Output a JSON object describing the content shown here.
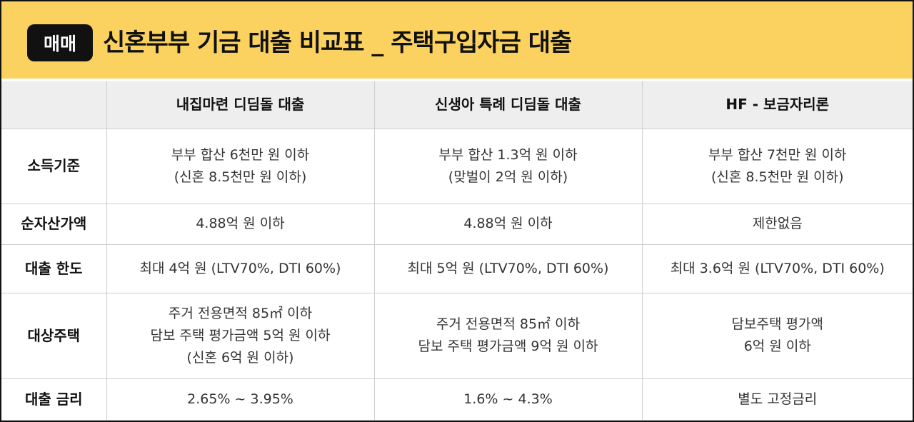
{
  "header": {
    "badge": "매매",
    "title": "신혼부부 기금 대출 비교표 _ 주택구입자금 대출"
  },
  "table": {
    "columns": [
      "내집마련 디딤돌 대출",
      "신생아 특례 디딤돌 대출",
      "HF - 보금자리론"
    ],
    "rows": [
      {
        "label": "소득기준",
        "cells": [
          [
            "부부 합산 6천만 원 이하",
            "(신혼 8.5천만 원 이하)"
          ],
          [
            "부부 합산 1.3억 원 이하",
            "(맞벌이 2억 원 이하)"
          ],
          [
            "부부 합산 7천만 원 이하",
            "(신혼 8.5천만 원 이하)"
          ]
        ]
      },
      {
        "label": "순자산가액",
        "cells": [
          [
            "4.88억 원 이하"
          ],
          [
            "4.88억 원 이하"
          ],
          [
            "제한없음"
          ]
        ]
      },
      {
        "label": "대출 한도",
        "cells": [
          [
            "최대 4억 원 (LTV70%, DTI 60%)"
          ],
          [
            "최대 5억 원 (LTV70%, DTI 60%)"
          ],
          [
            "최대 3.6억 원 (LTV70%, DTI 60%)"
          ]
        ]
      },
      {
        "label": "대상주택",
        "cells": [
          [
            "주거 전용면적 85㎡ 이하",
            "담보 주택 평가금액 5억 원 이하",
            "(신혼 6억 원 이하)"
          ],
          [
            "주거 전용면적 85㎡ 이하",
            "담보 주택 평가금액 9억 원 이하"
          ],
          [
            "담보주택 평가액",
            "6억 원 이하"
          ]
        ]
      },
      {
        "label": "대출 금리",
        "cells": [
          [
            "2.65% ~ 3.95%"
          ],
          [
            "1.6% ~ 4.3%"
          ],
          [
            "별도 고정금리"
          ]
        ]
      }
    ]
  }
}
